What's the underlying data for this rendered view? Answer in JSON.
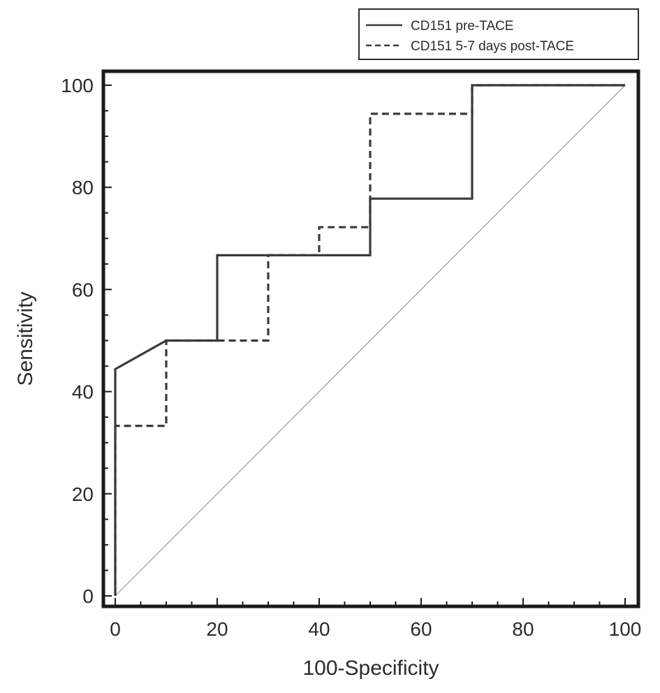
{
  "chart_data": {
    "type": "line",
    "title": "",
    "xlabel": "100-Specificity",
    "ylabel": "Sensitivity",
    "xlim": [
      0,
      100
    ],
    "ylim": [
      0,
      100
    ],
    "xticks": [
      0,
      20,
      40,
      60,
      80,
      100
    ],
    "yticks": [
      0,
      20,
      40,
      60,
      80,
      100
    ],
    "grid": false,
    "legend_position": "top-right",
    "reference_line": {
      "x": [
        0,
        100
      ],
      "y": [
        0,
        100
      ]
    },
    "series": [
      {
        "name": "CD151 pre-TACE",
        "style": "solid",
        "color": "#3a3a3a",
        "x": [
          0,
          0,
          10,
          20,
          20,
          30,
          40,
          50,
          50,
          70,
          70,
          100
        ],
        "y": [
          0,
          44.4,
          50,
          50,
          66.7,
          66.7,
          66.7,
          66.7,
          77.8,
          77.8,
          100,
          100
        ]
      },
      {
        "name": "CD151 5-7 days post-TACE",
        "style": "dashed",
        "color": "#3a3a3a",
        "x": [
          0,
          0,
          10,
          10,
          30,
          30,
          40,
          40,
          50,
          50,
          70,
          70,
          100
        ],
        "y": [
          0,
          33.3,
          33.3,
          50,
          50,
          66.7,
          66.7,
          72.2,
          72.2,
          94.4,
          94.4,
          100,
          100
        ]
      }
    ]
  }
}
